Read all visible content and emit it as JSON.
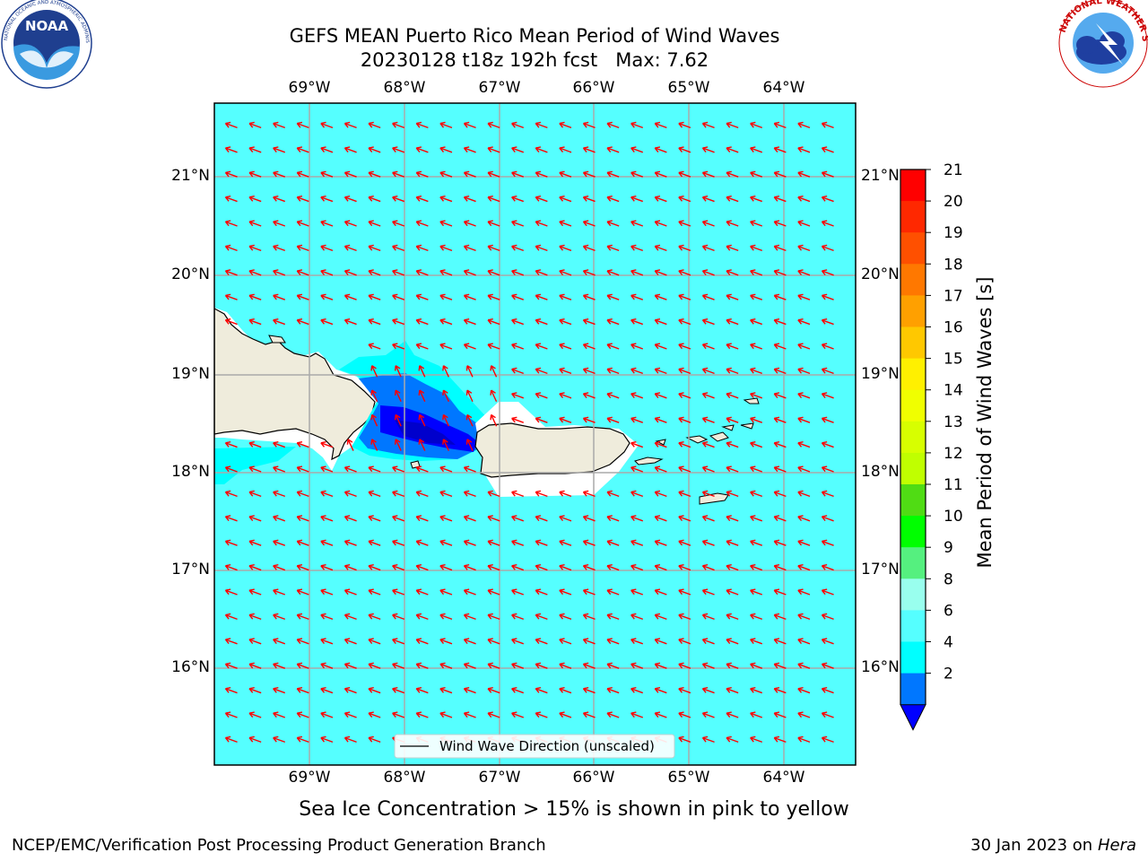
{
  "title": {
    "line1": "GEFS MEAN Puerto Rico Mean Period of Wind Waves",
    "line2": "20230128 t18z 192h fcst   Max: 7.62"
  },
  "logos": {
    "noaa": {
      "icon": "noaa-logo",
      "text": "NOAA",
      "ring_text": "NATIONAL OCEANIC AND ATMOSPHERIC ADMINISTRATION · U.S. DEPARTMENT OF COMMERCE"
    },
    "nws": {
      "icon": "nws-logo",
      "ring_text": "NATIONAL WEATHER SERVICE"
    }
  },
  "map": {
    "lon_ticks": [
      "69°W",
      "68°W",
      "67°W",
      "66°W",
      "65°W",
      "64°W"
    ],
    "lat_ticks": [
      "21°N",
      "20°N",
      "19°N",
      "18°N",
      "17°N",
      "16°N"
    ],
    "ocean_color": "#55ffff",
    "land_color": "#efecdc",
    "arrow_color": "#ff0000",
    "legend_label": "Wind Wave Direction (unscaled)"
  },
  "colorbar": {
    "label": "Mean Period of Wind Waves [s]",
    "levels": [
      "21",
      "20",
      "19",
      "18",
      "17",
      "16",
      "15",
      "14",
      "13",
      "12",
      "11",
      "10",
      "9",
      "8",
      "6",
      "4",
      "2"
    ],
    "colors": [
      "#ff0000",
      "#ff2800",
      "#ff5000",
      "#ff7800",
      "#ffa000",
      "#ffc800",
      "#fff000",
      "#f0ff00",
      "#d7ff00",
      "#c0ff00",
      "#50dc14",
      "#00ff00",
      "#55f07f",
      "#99ffee",
      "#55ffff",
      "#00ffff",
      "#0077ff"
    ],
    "under_color": "#0000ff"
  },
  "caption": "Sea Ice Concentration > 15% is shown in pink to yellow",
  "footer": {
    "left": "NCEP/EMC/Verification Post Processing Product Generation Branch",
    "date": "30 Jan 2023 on ",
    "machine": "Hera"
  }
}
